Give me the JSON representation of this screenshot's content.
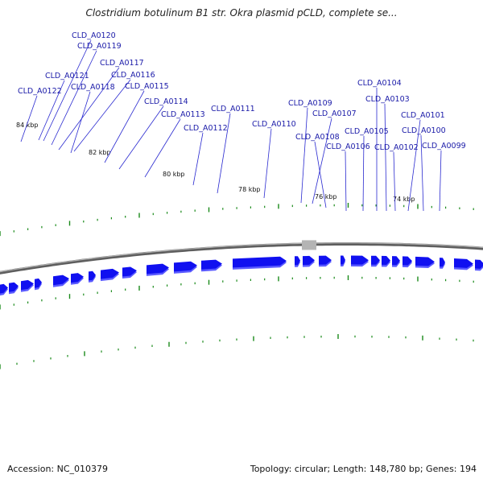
{
  "title": "Clostridium botulinum B1 str. Okra plasmid pCLD, complete se...",
  "footer": {
    "accession": "Accession: NC_010379",
    "summary": "Topology: circular; Length: 148,780 bp; Genes: 194"
  },
  "colors": {
    "gene_fill": "#1010f0",
    "gene_shade": "#5a5aff",
    "label_text": "#1a1aa8",
    "leader_line": "#2a2ad0",
    "tick": "#1a8a1a",
    "backbone": "#7a7a7a",
    "rna_feature": "#b4b4b4"
  },
  "kbp_labels": [
    "84 kbp",
    "82 kbp",
    "80 kbp",
    "78 kbp",
    "76 kbp",
    "74 kbp"
  ],
  "gene_labels": [
    "CLD_A0120",
    "CLD_A0119",
    "CLD_A0117",
    "CLD_A0121",
    "CLD_A0116",
    "CLD_A0118",
    "CLD_A0115",
    "CLD_A0122",
    "CLD_A0114",
    "CLD_A0113",
    "CLD_A0111",
    "CLD_A0112",
    "CLD_A0110",
    "CLD_A0109",
    "CLD_A0107",
    "CLD_A0108",
    "CLD_A0106",
    "CLD_A0105",
    "CLD_A0104",
    "CLD_A0103",
    "CLD_A0102",
    "CLD_A0101",
    "CLD_A0100",
    "CLD_A0099"
  ]
}
